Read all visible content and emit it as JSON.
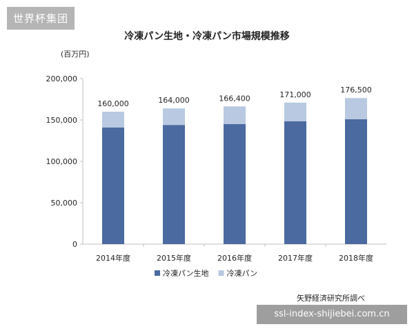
{
  "watermark": {
    "top": "世界杯集团",
    "bottom": "ssl-index-shijiebei.com.cn"
  },
  "unit_label": "(百万円)",
  "source_note": "矢野経済研究所調べ",
  "colors": {
    "dough": "#4a6aa0",
    "bread": "#b8c9e1",
    "axis": "#bfbfbf"
  },
  "chart_data": {
    "type": "bar",
    "stacked": true,
    "title": "冷凍パン生地・冷凍パン市場規模推移",
    "xlabel": "",
    "ylabel": "(百万円)",
    "categories": [
      "2014年度",
      "2015年度",
      "2016年度",
      "2017年度",
      "2018年度"
    ],
    "series": [
      {
        "name": "冷凍パン生地",
        "values": [
          141000,
          144000,
          145000,
          148500,
          151000
        ]
      },
      {
        "name": "冷凍パン",
        "values": [
          19000,
          20000,
          21400,
          22500,
          25500
        ]
      }
    ],
    "totals": [
      "160,000",
      "164,000",
      "166,400",
      "171,000",
      "176,500"
    ],
    "ylim": [
      0,
      200000
    ],
    "yticks": [
      "0",
      "50,000",
      "100,000",
      "150,000",
      "200,000"
    ],
    "ytick_values": [
      0,
      50000,
      100000,
      150000,
      200000
    ],
    "grid": false,
    "legend": "bottom"
  }
}
